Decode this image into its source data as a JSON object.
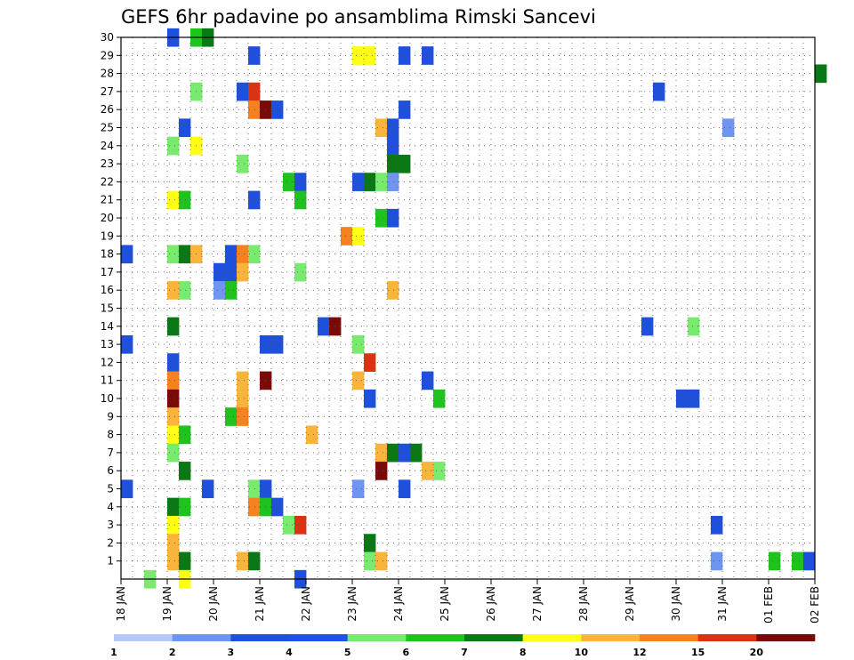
{
  "chart_data": {
    "type": "heatmap",
    "title": "GEFS 6hr padavine po ansamblima Rimski Sancevi",
    "xlabel": "",
    "ylabel": "",
    "x_ticks": [
      "18 JAN",
      "19 JAN",
      "20 JAN",
      "21 JAN",
      "22 JAN",
      "23 JAN",
      "24 JAN",
      "25 JAN",
      "26 JAN",
      "27 JAN",
      "28 JAN",
      "29 JAN",
      "30 JAN",
      "31 JAN",
      "01 FEB",
      "02 FEB"
    ],
    "y_ticks": [
      1,
      2,
      3,
      4,
      5,
      6,
      7,
      8,
      9,
      10,
      11,
      12,
      13,
      14,
      15,
      16,
      17,
      18,
      19,
      20,
      21,
      22,
      23,
      24,
      25,
      26,
      27,
      28,
      29,
      30
    ],
    "xlim": [
      "18 JAN",
      "02 FEB"
    ],
    "ylim": [
      0,
      30
    ],
    "grid": true,
    "colorbar": {
      "levels": [
        "1",
        "2",
        "3",
        "4",
        "5",
        "6",
        "7",
        "8",
        "10",
        "12",
        "15",
        "20"
      ],
      "colors": [
        "#b4c8fa",
        "#6e96f0",
        "#1e50dc",
        "#2050e6",
        "#78eb6e",
        "#1ec31e",
        "#0a7814",
        "#ffff14",
        "#fab43c",
        "#f5821e",
        "#dc3214",
        "#780a0a"
      ]
    },
    "cells": [
      {
        "d": "19 JAN 00Z",
        "m": 30,
        "c": "#1e50dc"
      },
      {
        "d": "19 JAN 12Z",
        "m": 30,
        "c": "#1ec31e"
      },
      {
        "d": "19 JAN 18Z",
        "m": 30,
        "c": "#0a7814"
      },
      {
        "d": "20 JAN 18Z",
        "m": 29,
        "c": "#1e50dc"
      },
      {
        "d": "23 JAN 00Z",
        "m": 29,
        "c": "#ffff14"
      },
      {
        "d": "23 JAN 06Z",
        "m": 29,
        "c": "#ffff14"
      },
      {
        "d": "24 JAN 00Z",
        "m": 29,
        "c": "#1e50dc"
      },
      {
        "d": "24 JAN 12Z",
        "m": 29,
        "c": "#1e50dc"
      },
      {
        "d": "02 FEB 00Z",
        "m": 28,
        "c": "#0a7814"
      },
      {
        "d": "20 JAN 12Z",
        "m": 27,
        "c": "#1e50dc"
      },
      {
        "d": "20 JAN 18Z",
        "m": 27,
        "c": "#dc3214"
      },
      {
        "d": "19 JAN 12Z",
        "m": 27,
        "c": "#78eb6e"
      },
      {
        "d": "29 JAN 12Z",
        "m": 27,
        "c": "#1e50dc"
      },
      {
        "d": "20 JAN 18Z",
        "m": 26,
        "c": "#f5821e"
      },
      {
        "d": "21 JAN 00Z",
        "m": 26,
        "c": "#780a0a"
      },
      {
        "d": "21 JAN 06Z",
        "m": 26,
        "c": "#1e50dc"
      },
      {
        "d": "24 JAN 00Z",
        "m": 26,
        "c": "#1e50dc"
      },
      {
        "d": "19 JAN 06Z",
        "m": 25,
        "c": "#1e50dc"
      },
      {
        "d": "23 JAN 12Z",
        "m": 25,
        "c": "#fab43c"
      },
      {
        "d": "23 JAN 18Z",
        "m": 25,
        "c": "#1e50dc"
      },
      {
        "d": "31 JAN 00Z",
        "m": 25,
        "c": "#6e96f0"
      },
      {
        "d": "19 JAN 00Z",
        "m": 24,
        "c": "#78eb6e"
      },
      {
        "d": "19 JAN 12Z",
        "m": 24,
        "c": "#ffff14"
      },
      {
        "d": "23 JAN 18Z",
        "m": 24,
        "c": "#1e50dc"
      },
      {
        "d": "20 JAN 12Z",
        "m": 23,
        "c": "#78eb6e"
      },
      {
        "d": "23 JAN 18Z",
        "m": 23,
        "c": "#0a7814"
      },
      {
        "d": "24 JAN 00Z",
        "m": 23,
        "c": "#0a7814"
      },
      {
        "d": "21 JAN 12Z",
        "m": 22,
        "c": "#1ec31e"
      },
      {
        "d": "21 JAN 18Z",
        "m": 22,
        "c": "#1e50dc"
      },
      {
        "d": "23 JAN 00Z",
        "m": 22,
        "c": "#1e50dc"
      },
      {
        "d": "23 JAN 06Z",
        "m": 22,
        "c": "#0a7814"
      },
      {
        "d": "23 JAN 12Z",
        "m": 22,
        "c": "#78eb6e"
      },
      {
        "d": "23 JAN 18Z",
        "m": 22,
        "c": "#6e96f0"
      },
      {
        "d": "19 JAN 00Z",
        "m": 21,
        "c": "#ffff14"
      },
      {
        "d": "19 JAN 06Z",
        "m": 21,
        "c": "#1ec31e"
      },
      {
        "d": "20 JAN 18Z",
        "m": 21,
        "c": "#1e50dc"
      },
      {
        "d": "21 JAN 18Z",
        "m": 21,
        "c": "#1ec31e"
      },
      {
        "d": "23 JAN 12Z",
        "m": 20,
        "c": "#1ec31e"
      },
      {
        "d": "23 JAN 18Z",
        "m": 20,
        "c": "#1e50dc"
      },
      {
        "d": "22 JAN 18Z",
        "m": 19,
        "c": "#f5821e"
      },
      {
        "d": "23 JAN 00Z",
        "m": 19,
        "c": "#ffff14"
      },
      {
        "d": "18 JAN 00Z",
        "m": 18,
        "c": "#1e50dc"
      },
      {
        "d": "19 JAN 00Z",
        "m": 18,
        "c": "#78eb6e"
      },
      {
        "d": "19 JAN 06Z",
        "m": 18,
        "c": "#0a7814"
      },
      {
        "d": "19 JAN 12Z",
        "m": 18,
        "c": "#fab43c"
      },
      {
        "d": "20 JAN 06Z",
        "m": 18,
        "c": "#1e50dc"
      },
      {
        "d": "20 JAN 12Z",
        "m": 18,
        "c": "#f5821e"
      },
      {
        "d": "20 JAN 18Z",
        "m": 18,
        "c": "#78eb6e"
      },
      {
        "d": "20 JAN 00Z",
        "m": 17,
        "c": "#1e50dc"
      },
      {
        "d": "20 JAN 06Z",
        "m": 17,
        "c": "#1e50dc"
      },
      {
        "d": "20 JAN 12Z",
        "m": 17,
        "c": "#fab43c"
      },
      {
        "d": "21 JAN 18Z",
        "m": 17,
        "c": "#78eb6e"
      },
      {
        "d": "19 JAN 00Z",
        "m": 16,
        "c": "#fab43c"
      },
      {
        "d": "19 JAN 06Z",
        "m": 16,
        "c": "#78eb6e"
      },
      {
        "d": "20 JAN 00Z",
        "m": 16,
        "c": "#6e96f0"
      },
      {
        "d": "20 JAN 06Z",
        "m": 16,
        "c": "#1ec31e"
      },
      {
        "d": "23 JAN 18Z",
        "m": 16,
        "c": "#fab43c"
      },
      {
        "d": "19 JAN 00Z",
        "m": 14,
        "c": "#0a7814"
      },
      {
        "d": "22 JAN 06Z",
        "m": 14,
        "c": "#1e50dc"
      },
      {
        "d": "22 JAN 12Z",
        "m": 14,
        "c": "#780a0a"
      },
      {
        "d": "29 JAN 06Z",
        "m": 14,
        "c": "#1e50dc"
      },
      {
        "d": "30 JAN 06Z",
        "m": 14,
        "c": "#78eb6e"
      },
      {
        "d": "18 JAN 00Z",
        "m": 13,
        "c": "#1e50dc"
      },
      {
        "d": "21 JAN 00Z",
        "m": 13,
        "c": "#1e50dc"
      },
      {
        "d": "21 JAN 06Z",
        "m": 13,
        "c": "#1e50dc"
      },
      {
        "d": "23 JAN 00Z",
        "m": 13,
        "c": "#78eb6e"
      },
      {
        "d": "19 JAN 00Z",
        "m": 12,
        "c": "#1e50dc"
      },
      {
        "d": "23 JAN 06Z",
        "m": 12,
        "c": "#dc3214"
      },
      {
        "d": "19 JAN 00Z",
        "m": 11,
        "c": "#f5821e"
      },
      {
        "d": "20 JAN 12Z",
        "m": 11,
        "c": "#fab43c"
      },
      {
        "d": "21 JAN 00Z",
        "m": 11,
        "c": "#780a0a"
      },
      {
        "d": "23 JAN 00Z",
        "m": 11,
        "c": "#fab43c"
      },
      {
        "d": "24 JAN 12Z",
        "m": 11,
        "c": "#1e50dc"
      },
      {
        "d": "19 JAN 00Z",
        "m": 10,
        "c": "#780a0a"
      },
      {
        "d": "20 JAN 12Z",
        "m": 10,
        "c": "#fab43c"
      },
      {
        "d": "23 JAN 06Z",
        "m": 10,
        "c": "#1e50dc"
      },
      {
        "d": "24 JAN 18Z",
        "m": 10,
        "c": "#1ec31e"
      },
      {
        "d": "30 JAN 00Z",
        "m": 10,
        "c": "#1e50dc"
      },
      {
        "d": "30 JAN 06Z",
        "m": 10,
        "c": "#1e50dc"
      },
      {
        "d": "19 JAN 00Z",
        "m": 9,
        "c": "#fab43c"
      },
      {
        "d": "20 JAN 06Z",
        "m": 9,
        "c": "#1ec31e"
      },
      {
        "d": "20 JAN 12Z",
        "m": 9,
        "c": "#f5821e"
      },
      {
        "d": "19 JAN 00Z",
        "m": 8,
        "c": "#ffff14"
      },
      {
        "d": "19 JAN 06Z",
        "m": 8,
        "c": "#1ec31e"
      },
      {
        "d": "22 JAN 00Z",
        "m": 8,
        "c": "#fab43c"
      },
      {
        "d": "19 JAN 00Z",
        "m": 7,
        "c": "#78eb6e"
      },
      {
        "d": "23 JAN 12Z",
        "m": 7,
        "c": "#fab43c"
      },
      {
        "d": "23 JAN 18Z",
        "m": 7,
        "c": "#0a7814"
      },
      {
        "d": "24 JAN 00Z",
        "m": 7,
        "c": "#1e50dc"
      },
      {
        "d": "24 JAN 06Z",
        "m": 7,
        "c": "#0a7814"
      },
      {
        "d": "19 JAN 06Z",
        "m": 6,
        "c": "#0a7814"
      },
      {
        "d": "23 JAN 12Z",
        "m": 6,
        "c": "#780a0a"
      },
      {
        "d": "24 JAN 12Z",
        "m": 6,
        "c": "#fab43c"
      },
      {
        "d": "24 JAN 18Z",
        "m": 6,
        "c": "#78eb6e"
      },
      {
        "d": "18 JAN 00Z",
        "m": 5,
        "c": "#1e50dc"
      },
      {
        "d": "19 JAN 18Z",
        "m": 5,
        "c": "#1e50dc"
      },
      {
        "d": "20 JAN 18Z",
        "m": 5,
        "c": "#78eb6e"
      },
      {
        "d": "21 JAN 00Z",
        "m": 5,
        "c": "#1e50dc"
      },
      {
        "d": "23 JAN 00Z",
        "m": 5,
        "c": "#6e96f0"
      },
      {
        "d": "24 JAN 00Z",
        "m": 5,
        "c": "#1e50dc"
      },
      {
        "d": "19 JAN 00Z",
        "m": 4,
        "c": "#0a7814"
      },
      {
        "d": "19 JAN 06Z",
        "m": 4,
        "c": "#1ec31e"
      },
      {
        "d": "20 JAN 18Z",
        "m": 4,
        "c": "#f5821e"
      },
      {
        "d": "21 JAN 00Z",
        "m": 4,
        "c": "#1ec31e"
      },
      {
        "d": "21 JAN 06Z",
        "m": 4,
        "c": "#1e50dc"
      },
      {
        "d": "19 JAN 00Z",
        "m": 3,
        "c": "#ffff14"
      },
      {
        "d": "21 JAN 12Z",
        "m": 3,
        "c": "#78eb6e"
      },
      {
        "d": "21 JAN 18Z",
        "m": 3,
        "c": "#dc3214"
      },
      {
        "d": "30 JAN 18Z",
        "m": 3,
        "c": "#1e50dc"
      },
      {
        "d": "19 JAN 00Z",
        "m": 2,
        "c": "#fab43c"
      },
      {
        "d": "23 JAN 06Z",
        "m": 2,
        "c": "#0a7814"
      },
      {
        "d": "19 JAN 00Z",
        "m": 1,
        "c": "#fab43c"
      },
      {
        "d": "19 JAN 06Z",
        "m": 1,
        "c": "#0a7814"
      },
      {
        "d": "20 JAN 12Z",
        "m": 1,
        "c": "#fab43c"
      },
      {
        "d": "20 JAN 18Z",
        "m": 1,
        "c": "#0a7814"
      },
      {
        "d": "23 JAN 06Z",
        "m": 1,
        "c": "#78eb6e"
      },
      {
        "d": "23 JAN 12Z",
        "m": 1,
        "c": "#fab43c"
      },
      {
        "d": "30 JAN 18Z",
        "m": 1,
        "c": "#6e96f0"
      },
      {
        "d": "01 FEB 00Z",
        "m": 1,
        "c": "#1ec31e"
      },
      {
        "d": "01 FEB 12Z",
        "m": 1,
        "c": "#1ec31e"
      },
      {
        "d": "01 FEB 18Z",
        "m": 1,
        "c": "#1e50dc"
      },
      {
        "d": "19 JAN 06Z",
        "m": 0,
        "c": "#ffff14"
      },
      {
        "d": "18 JAN 12Z",
        "m": 0,
        "c": "#78eb6e"
      },
      {
        "d": "21 JAN 18Z",
        "m": 0,
        "c": "#1e50dc"
      }
    ]
  }
}
